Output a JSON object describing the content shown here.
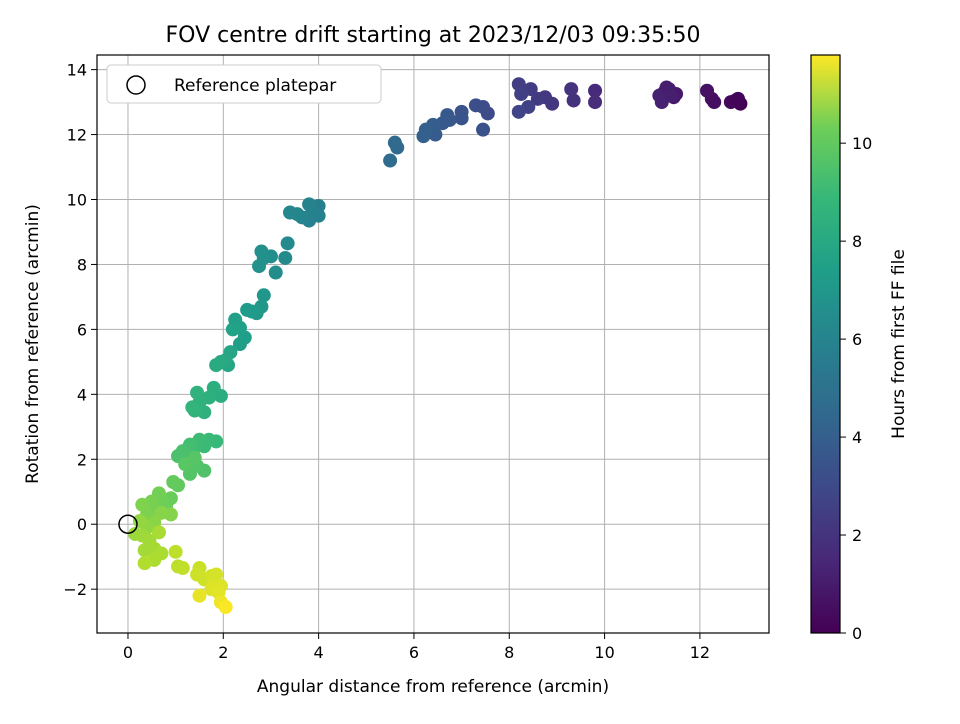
{
  "chart_data": {
    "type": "scatter",
    "title": "FOV centre drift starting at 2023/12/03 09:35:50",
    "xlabel": "Angular distance from reference (arcmin)",
    "ylabel": "Rotation from reference (arcmin)",
    "xlim": [
      -0.65,
      13.45
    ],
    "ylim": [
      -3.35,
      14.45
    ],
    "xticks": [
      0,
      2,
      4,
      6,
      8,
      10,
      12
    ],
    "yticks": [
      -2,
      0,
      2,
      4,
      6,
      8,
      10,
      12,
      14
    ],
    "grid": true,
    "legend": {
      "placement": "top-left",
      "entries": [
        "Reference platepar"
      ]
    },
    "reference_point": {
      "x": 0,
      "y": 0
    },
    "colorbar": {
      "label": "Hours from first FF file",
      "colormap": "viridis",
      "range": [
        0,
        11.8
      ],
      "ticks": [
        0,
        2,
        4,
        6,
        8,
        10
      ]
    },
    "points": [
      [
        12.85,
        12.95,
        0.05
      ],
      [
        12.75,
        13.05,
        0.15
      ],
      [
        12.65,
        13.0,
        0.2
      ],
      [
        12.8,
        13.1,
        0.1
      ],
      [
        12.25,
        13.1,
        0.4
      ],
      [
        12.3,
        13.0,
        0.45
      ],
      [
        12.15,
        13.35,
        0.55
      ],
      [
        11.5,
        13.25,
        0.8
      ],
      [
        11.45,
        13.15,
        0.85
      ],
      [
        11.35,
        13.4,
        0.9
      ],
      [
        11.25,
        13.3,
        1.0
      ],
      [
        11.2,
        13.0,
        1.05
      ],
      [
        11.15,
        13.2,
        1.1
      ],
      [
        11.3,
        13.45,
        0.95
      ],
      [
        11.4,
        13.2,
        1.0
      ],
      [
        9.8,
        13.35,
        1.4
      ],
      [
        9.8,
        13.0,
        1.5
      ],
      [
        9.35,
        13.05,
        1.7
      ],
      [
        9.3,
        13.4,
        1.75
      ],
      [
        8.9,
        12.95,
        1.9
      ],
      [
        8.75,
        13.15,
        2.0
      ],
      [
        8.6,
        13.1,
        2.05
      ],
      [
        8.45,
        13.4,
        2.15
      ],
      [
        8.2,
        13.55,
        2.2
      ],
      [
        8.25,
        13.25,
        2.25
      ],
      [
        8.4,
        12.85,
        2.35
      ],
      [
        8.2,
        12.7,
        2.45
      ],
      [
        7.55,
        12.65,
        2.7
      ],
      [
        7.45,
        12.85,
        2.8
      ],
      [
        7.3,
        12.9,
        2.85
      ],
      [
        7.45,
        12.15,
        2.95
      ],
      [
        7.0,
        12.7,
        3.05
      ],
      [
        7.0,
        12.5,
        3.1
      ],
      [
        6.75,
        12.45,
        3.2
      ],
      [
        6.7,
        12.6,
        3.3
      ],
      [
        6.6,
        12.35,
        3.35
      ],
      [
        6.45,
        12.0,
        3.4
      ],
      [
        6.4,
        12.3,
        3.5
      ],
      [
        6.25,
        12.15,
        3.55
      ],
      [
        6.2,
        11.95,
        3.6
      ],
      [
        5.65,
        11.6,
        4.05
      ],
      [
        5.6,
        11.75,
        4.1
      ],
      [
        5.5,
        11.2,
        4.15
      ],
      [
        4.0,
        9.8,
        5.1
      ],
      [
        4.0,
        9.5,
        5.15
      ],
      [
        3.85,
        9.55,
        5.2
      ],
      [
        3.8,
        9.35,
        5.25
      ],
      [
        3.8,
        9.85,
        5.3
      ],
      [
        3.65,
        9.45,
        5.35
      ],
      [
        3.55,
        9.55,
        5.4
      ],
      [
        3.4,
        9.6,
        5.45
      ],
      [
        3.35,
        8.65,
        5.6
      ],
      [
        3.3,
        8.2,
        5.65
      ],
      [
        3.1,
        7.75,
        5.75
      ],
      [
        3.0,
        8.25,
        5.8
      ],
      [
        2.8,
        8.4,
        5.9
      ],
      [
        2.85,
        8.2,
        5.95
      ],
      [
        2.75,
        7.95,
        6.0
      ],
      [
        2.85,
        7.05,
        6.2
      ],
      [
        2.8,
        6.7,
        6.25
      ],
      [
        2.7,
        6.5,
        6.3
      ],
      [
        2.6,
        6.55,
        6.35
      ],
      [
        2.5,
        6.6,
        6.4
      ],
      [
        2.45,
        5.75,
        6.55
      ],
      [
        2.35,
        5.55,
        6.6
      ],
      [
        2.35,
        6.05,
        6.65
      ],
      [
        2.25,
        6.3,
        6.7
      ],
      [
        2.2,
        6.0,
        6.75
      ],
      [
        2.15,
        5.3,
        6.9
      ],
      [
        2.1,
        4.9,
        7.0
      ],
      [
        2.05,
        5.05,
        7.05
      ],
      [
        1.95,
        5.0,
        7.15
      ],
      [
        1.85,
        4.9,
        7.2
      ],
      [
        1.95,
        3.95,
        7.35
      ],
      [
        1.8,
        4.2,
        7.4
      ],
      [
        1.7,
        3.9,
        7.45
      ],
      [
        1.6,
        3.45,
        7.5
      ],
      [
        1.5,
        3.75,
        7.55
      ],
      [
        1.45,
        4.05,
        7.6
      ],
      [
        1.4,
        3.5,
        7.65
      ],
      [
        1.35,
        3.6,
        7.7
      ],
      [
        1.85,
        2.55,
        7.9
      ],
      [
        1.7,
        2.6,
        7.95
      ],
      [
        1.6,
        2.4,
        8.0
      ],
      [
        1.5,
        2.6,
        8.05
      ],
      [
        1.4,
        2.35,
        8.1
      ],
      [
        1.3,
        2.45,
        8.2
      ],
      [
        1.25,
        2.1,
        8.3
      ],
      [
        1.15,
        2.25,
        8.35
      ],
      [
        1.05,
        2.1,
        8.4
      ],
      [
        1.6,
        1.65,
        8.5
      ],
      [
        1.45,
        1.8,
        8.55
      ],
      [
        1.3,
        1.55,
        8.6
      ],
      [
        1.2,
        1.85,
        8.7
      ],
      [
        1.4,
        2.05,
        8.65
      ],
      [
        1.05,
        1.2,
        8.9
      ],
      [
        0.95,
        1.3,
        8.95
      ],
      [
        0.9,
        0.8,
        9.05
      ],
      [
        0.8,
        0.55,
        9.1
      ],
      [
        0.7,
        0.75,
        9.2
      ],
      [
        0.65,
        0.95,
        9.25
      ],
      [
        0.55,
        0.45,
        9.3
      ],
      [
        0.5,
        0.7,
        9.35
      ],
      [
        0.4,
        0.3,
        9.45
      ],
      [
        0.3,
        0.6,
        9.5
      ],
      [
        0.9,
        0.3,
        9.6
      ],
      [
        0.7,
        0.35,
        9.65
      ],
      [
        0.55,
        0.05,
        9.7
      ],
      [
        0.4,
        -0.1,
        9.8
      ],
      [
        0.25,
        0.1,
        9.85
      ],
      [
        0.15,
        -0.3,
        10.0
      ],
      [
        0.3,
        -0.35,
        10.05
      ],
      [
        0.45,
        -0.5,
        10.1
      ],
      [
        0.35,
        -0.8,
        10.15
      ],
      [
        0.55,
        -0.75,
        10.2
      ],
      [
        0.65,
        -0.25,
        10.25
      ],
      [
        0.7,
        -0.9,
        10.3
      ],
      [
        0.55,
        -1.1,
        10.35
      ],
      [
        0.35,
        -1.2,
        10.4
      ],
      [
        1.05,
        -1.3,
        10.6
      ],
      [
        1.0,
        -0.85,
        10.65
      ],
      [
        1.15,
        -1.35,
        10.7
      ],
      [
        1.5,
        -1.35,
        10.85
      ],
      [
        1.45,
        -1.55,
        10.9
      ],
      [
        1.6,
        -1.7,
        10.95
      ],
      [
        1.75,
        -1.6,
        11.0
      ],
      [
        1.85,
        -1.55,
        11.05
      ],
      [
        1.8,
        -1.85,
        11.1
      ],
      [
        1.95,
        -1.9,
        11.2
      ],
      [
        1.75,
        -2.0,
        11.25
      ],
      [
        1.9,
        -2.1,
        11.3
      ],
      [
        1.5,
        -2.2,
        11.4
      ],
      [
        1.95,
        -2.4,
        11.5
      ],
      [
        2.05,
        -2.55,
        11.75
      ]
    ]
  }
}
